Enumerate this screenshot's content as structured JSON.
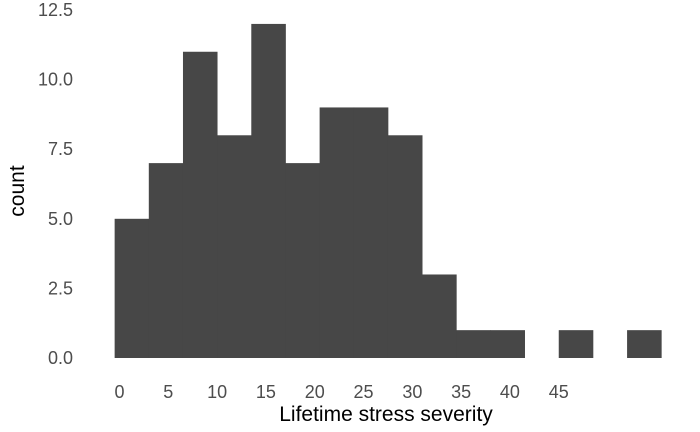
{
  "chart_data": {
    "type": "bar",
    "title": "",
    "xlabel": "Lifetime stress severity",
    "ylabel": "count",
    "bin_width": 3.5,
    "bins": [
      {
        "x0": -0.5,
        "x1": 3.0,
        "count": 5
      },
      {
        "x0": 3.0,
        "x1": 6.5,
        "count": 7
      },
      {
        "x0": 6.5,
        "x1": 10.0,
        "count": 11
      },
      {
        "x0": 10.0,
        "x1": 13.5,
        "count": 8
      },
      {
        "x0": 13.5,
        "x1": 17.0,
        "count": 12
      },
      {
        "x0": 17.0,
        "x1": 20.5,
        "count": 7
      },
      {
        "x0": 20.5,
        "x1": 24.0,
        "count": 9
      },
      {
        "x0": 24.0,
        "x1": 27.5,
        "count": 9
      },
      {
        "x0": 27.5,
        "x1": 31.0,
        "count": 8
      },
      {
        "x0": 31.0,
        "x1": 34.5,
        "count": 3
      },
      {
        "x0": 34.5,
        "x1": 38.0,
        "count": 1
      },
      {
        "x0": 38.0,
        "x1": 41.5,
        "count": 1
      },
      {
        "x0": 41.5,
        "x1": 45.0,
        "count": 0
      },
      {
        "x0": 45.0,
        "x1": 48.5,
        "count": 1
      },
      {
        "x0": 48.5,
        "x1": 52.0,
        "count": 0
      },
      {
        "x0": 52.0,
        "x1": 55.5,
        "count": 1
      }
    ],
    "xlim": [
      -2,
      56.5
    ],
    "ylim": [
      0,
      12.5
    ],
    "x_ticks": [
      0,
      5,
      10,
      15,
      20,
      25,
      30,
      35,
      40,
      45
    ],
    "x_tick_labels": [
      "0",
      "5",
      "10",
      "15",
      "20",
      "25",
      "30",
      "35",
      "40",
      "45"
    ],
    "y_ticks": [
      0,
      2.5,
      5,
      7.5,
      10,
      12.5
    ],
    "y_tick_labels": [
      "0.0",
      "2.5",
      "5.0",
      "7.5",
      "10.0",
      "12.5"
    ],
    "bar_color": "#474747",
    "grid": false,
    "legend": "none"
  }
}
